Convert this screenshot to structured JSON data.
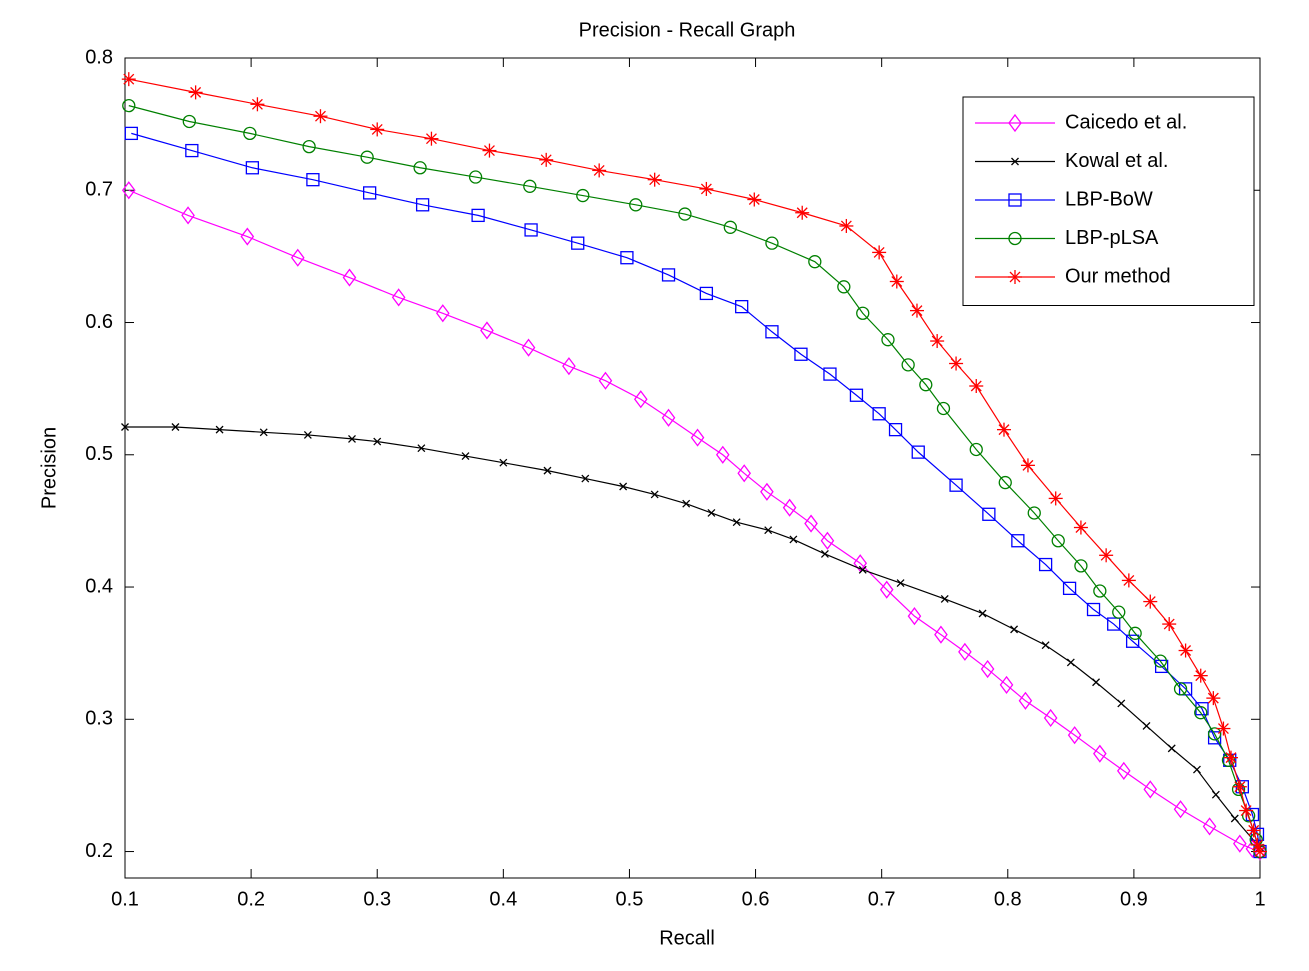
{
  "chart_data": {
    "type": "line",
    "title": "Precision - Recall Graph",
    "x_label": "Recall",
    "y_label": "Precision",
    "xlim": [
      0.1,
      1
    ],
    "ylim": [
      0.18,
      0.8
    ],
    "xticks": [
      0.1,
      0.2,
      0.3,
      0.4,
      0.5,
      0.6,
      0.7,
      0.8,
      0.9,
      1
    ],
    "yticks": [
      0.2,
      0.3,
      0.4,
      0.5,
      0.6,
      0.7,
      0.8
    ],
    "legend_position": "upper right",
    "series": [
      {
        "name": "Caicedo et al.",
        "color": "#ff00ff",
        "marker": "diamond",
        "x": [
          0.103,
          0.15,
          0.197,
          0.237,
          0.278,
          0.317,
          0.352,
          0.387,
          0.42,
          0.452,
          0.481,
          0.509,
          0.531,
          0.554,
          0.574,
          0.591,
          0.609,
          0.627,
          0.644,
          0.657,
          0.683,
          0.704,
          0.726,
          0.747,
          0.766,
          0.784,
          0.799,
          0.814,
          0.834,
          0.853,
          0.873,
          0.892,
          0.913,
          0.937,
          0.96,
          0.984,
          0.994,
          1.0
        ],
        "values": [
          0.7,
          0.681,
          0.665,
          0.649,
          0.634,
          0.619,
          0.607,
          0.594,
          0.581,
          0.567,
          0.556,
          0.542,
          0.528,
          0.513,
          0.5,
          0.486,
          0.472,
          0.46,
          0.448,
          0.435,
          0.418,
          0.398,
          0.378,
          0.364,
          0.351,
          0.338,
          0.326,
          0.314,
          0.301,
          0.288,
          0.274,
          0.261,
          0.247,
          0.232,
          0.219,
          0.206,
          0.202,
          0.2
        ]
      },
      {
        "name": "Kowal et al.",
        "color": "#000000",
        "marker": "x",
        "x": [
          0.1,
          0.14,
          0.175,
          0.21,
          0.245,
          0.28,
          0.3,
          0.335,
          0.37,
          0.4,
          0.435,
          0.465,
          0.495,
          0.52,
          0.545,
          0.565,
          0.585,
          0.61,
          0.63,
          0.655,
          0.685,
          0.715,
          0.75,
          0.78,
          0.805,
          0.83,
          0.85,
          0.87,
          0.89,
          0.91,
          0.93,
          0.95,
          0.965,
          0.98,
          1.0
        ],
        "values": [
          0.521,
          0.521,
          0.519,
          0.517,
          0.515,
          0.512,
          0.51,
          0.505,
          0.499,
          0.494,
          0.488,
          0.482,
          0.476,
          0.47,
          0.463,
          0.456,
          0.449,
          0.443,
          0.436,
          0.425,
          0.413,
          0.403,
          0.391,
          0.38,
          0.368,
          0.356,
          0.343,
          0.328,
          0.312,
          0.295,
          0.278,
          0.262,
          0.243,
          0.225,
          0.203
        ]
      },
      {
        "name": "LBP-BoW",
        "color": "#0000ff",
        "marker": "square",
        "x": [
          0.105,
          0.153,
          0.201,
          0.249,
          0.294,
          0.336,
          0.38,
          0.422,
          0.459,
          0.498,
          0.531,
          0.561,
          0.589,
          0.613,
          0.636,
          0.659,
          0.68,
          0.698,
          0.711,
          0.729,
          0.759,
          0.785,
          0.808,
          0.83,
          0.849,
          0.868,
          0.884,
          0.899,
          0.922,
          0.941,
          0.954,
          0.964,
          0.976,
          0.986,
          0.994,
          0.998,
          1.0
        ],
        "values": [
          0.743,
          0.73,
          0.717,
          0.708,
          0.698,
          0.689,
          0.681,
          0.67,
          0.66,
          0.649,
          0.636,
          0.622,
          0.612,
          0.593,
          0.576,
          0.561,
          0.545,
          0.531,
          0.519,
          0.502,
          0.477,
          0.455,
          0.435,
          0.417,
          0.399,
          0.383,
          0.372,
          0.359,
          0.34,
          0.323,
          0.308,
          0.286,
          0.269,
          0.249,
          0.228,
          0.213,
          0.2
        ]
      },
      {
        "name": "LBP-pLSA",
        "color": "#008000",
        "marker": "circle",
        "x": [
          0.103,
          0.151,
          0.199,
          0.246,
          0.292,
          0.334,
          0.378,
          0.421,
          0.463,
          0.505,
          0.544,
          0.58,
          0.613,
          0.647,
          0.67,
          0.685,
          0.705,
          0.721,
          0.735,
          0.749,
          0.775,
          0.798,
          0.821,
          0.84,
          0.858,
          0.873,
          0.888,
          0.901,
          0.921,
          0.937,
          0.953,
          0.964,
          0.975,
          0.983,
          0.991,
          0.997,
          1.0
        ],
        "values": [
          0.764,
          0.752,
          0.743,
          0.733,
          0.725,
          0.717,
          0.71,
          0.703,
          0.696,
          0.689,
          0.682,
          0.672,
          0.66,
          0.646,
          0.627,
          0.607,
          0.587,
          0.568,
          0.553,
          0.535,
          0.504,
          0.479,
          0.456,
          0.435,
          0.416,
          0.397,
          0.381,
          0.365,
          0.344,
          0.323,
          0.305,
          0.289,
          0.269,
          0.247,
          0.227,
          0.209,
          0.2
        ]
      },
      {
        "name": "Our method",
        "color": "#ff0000",
        "marker": "star",
        "x": [
          0.103,
          0.156,
          0.205,
          0.255,
          0.3,
          0.343,
          0.389,
          0.434,
          0.476,
          0.52,
          0.561,
          0.599,
          0.637,
          0.672,
          0.698,
          0.712,
          0.728,
          0.744,
          0.759,
          0.775,
          0.797,
          0.816,
          0.838,
          0.858,
          0.878,
          0.896,
          0.913,
          0.928,
          0.941,
          0.953,
          0.963,
          0.971,
          0.977,
          0.984,
          0.989,
          0.995,
          0.998,
          1.0
        ],
        "values": [
          0.784,
          0.774,
          0.765,
          0.756,
          0.746,
          0.739,
          0.73,
          0.723,
          0.715,
          0.708,
          0.701,
          0.693,
          0.683,
          0.673,
          0.653,
          0.631,
          0.609,
          0.586,
          0.569,
          0.552,
          0.519,
          0.492,
          0.467,
          0.445,
          0.424,
          0.405,
          0.389,
          0.372,
          0.352,
          0.333,
          0.316,
          0.293,
          0.271,
          0.249,
          0.231,
          0.216,
          0.205,
          0.2
        ]
      }
    ]
  }
}
